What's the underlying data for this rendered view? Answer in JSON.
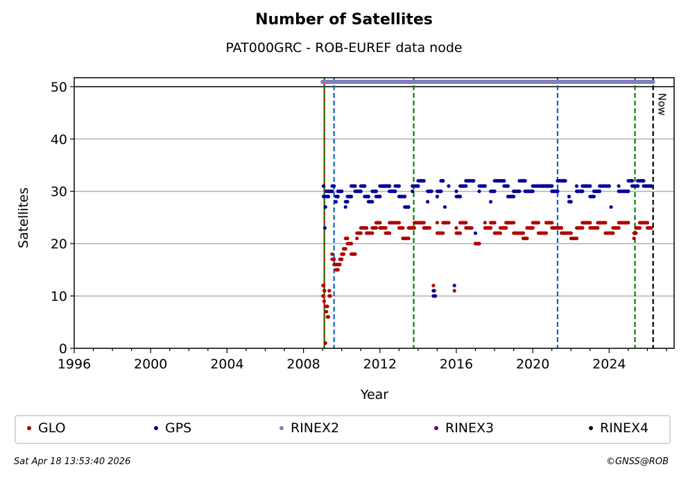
{
  "chart_data": {
    "type": "scatter",
    "title": "Number of Satellites",
    "subtitle": "PAT000GRC - ROB-EUREF data node",
    "xlabel": "Year",
    "ylabel": "Satellites",
    "xlim": [
      1996,
      2027.4
    ],
    "ylim": [
      0,
      51.7
    ],
    "xticks": [
      1996,
      2000,
      2004,
      2008,
      2012,
      2016,
      2020,
      2024
    ],
    "yticks": [
      0,
      10,
      20,
      30,
      40,
      50
    ],
    "grid": "horizontal",
    "legend_placement": "bottom",
    "now_label": "Now",
    "now_year": 2026.3,
    "vlines": [
      {
        "year": 2009.09,
        "color": "#cc0000"
      },
      {
        "year": 2009.09,
        "color": "#008000"
      },
      {
        "year": 2009.6,
        "color": "#1060c0"
      },
      {
        "year": 2013.77,
        "color": "#008000"
      },
      {
        "year": 2021.3,
        "color": "#1060c0"
      },
      {
        "year": 2025.35,
        "color": "#008000"
      }
    ],
    "rinex2_span": {
      "from": 2009.0,
      "to": 2026.3,
      "level": 50.9
    },
    "series": [
      {
        "name": "GLO",
        "color": "#b00000",
        "points": [
          [
            2009.02,
            10
          ],
          [
            2009.05,
            12
          ],
          [
            2009.08,
            9
          ],
          [
            2009.1,
            11
          ],
          [
            2009.15,
            1
          ],
          [
            2009.2,
            7
          ],
          [
            2009.25,
            8
          ],
          [
            2009.3,
            6
          ],
          [
            2009.35,
            11
          ],
          [
            2009.4,
            10
          ],
          [
            2009.5,
            18
          ],
          [
            2009.6,
            17
          ],
          [
            2009.7,
            16
          ],
          [
            2009.8,
            15
          ],
          [
            2009.9,
            16
          ],
          [
            2010.0,
            17
          ],
          [
            2010.1,
            18
          ],
          [
            2010.2,
            19
          ],
          [
            2010.3,
            21
          ],
          [
            2010.5,
            20
          ],
          [
            2010.7,
            18
          ],
          [
            2010.8,
            21
          ],
          [
            2011.0,
            22
          ],
          [
            2011.3,
            23
          ],
          [
            2011.6,
            22
          ],
          [
            2011.8,
            23
          ],
          [
            2012.0,
            24
          ],
          [
            2012.3,
            23
          ],
          [
            2012.5,
            22
          ],
          [
            2013.0,
            24
          ],
          [
            2013.2,
            23
          ],
          [
            2013.5,
            21
          ],
          [
            2013.8,
            23
          ],
          [
            2014.0,
            24
          ],
          [
            2014.3,
            24
          ],
          [
            2014.6,
            23
          ],
          [
            2014.8,
            12
          ],
          [
            2014.85,
            11
          ],
          [
            2015.0,
            24
          ],
          [
            2015.3,
            22
          ],
          [
            2015.6,
            24
          ],
          [
            2015.9,
            11
          ],
          [
            2016.0,
            23
          ],
          [
            2016.2,
            22
          ],
          [
            2016.5,
            24
          ],
          [
            2016.8,
            23
          ],
          [
            2017.0,
            20
          ],
          [
            2017.2,
            20
          ],
          [
            2017.5,
            24
          ],
          [
            2017.8,
            23
          ],
          [
            2018.0,
            24
          ],
          [
            2018.3,
            22
          ],
          [
            2018.6,
            23
          ],
          [
            2019.0,
            24
          ],
          [
            2019.5,
            22
          ],
          [
            2019.7,
            21
          ],
          [
            2020.0,
            23
          ],
          [
            2020.3,
            24
          ],
          [
            2020.7,
            22
          ],
          [
            2021.0,
            24
          ],
          [
            2021.5,
            23
          ],
          [
            2022.0,
            22
          ],
          [
            2022.3,
            21
          ],
          [
            2022.6,
            23
          ],
          [
            2023.0,
            24
          ],
          [
            2023.4,
            23
          ],
          [
            2023.8,
            24
          ],
          [
            2024.2,
            22
          ],
          [
            2024.5,
            23
          ],
          [
            2025.0,
            24
          ],
          [
            2025.3,
            21
          ],
          [
            2025.4,
            22
          ],
          [
            2025.6,
            23
          ],
          [
            2026.0,
            24
          ],
          [
            2026.2,
            23
          ]
        ]
      },
      {
        "name": "GPS",
        "color": "#000099",
        "points": [
          [
            2009.05,
            31
          ],
          [
            2009.1,
            29
          ],
          [
            2009.12,
            23
          ],
          [
            2009.15,
            27
          ],
          [
            2009.2,
            30
          ],
          [
            2009.3,
            29
          ],
          [
            2009.5,
            30
          ],
          [
            2009.6,
            31
          ],
          [
            2009.7,
            28
          ],
          [
            2009.8,
            29
          ],
          [
            2010.0,
            30
          ],
          [
            2010.2,
            27
          ],
          [
            2010.3,
            28
          ],
          [
            2010.5,
            29
          ],
          [
            2010.7,
            31
          ],
          [
            2011.0,
            30
          ],
          [
            2011.2,
            31
          ],
          [
            2011.4,
            29
          ],
          [
            2011.6,
            28
          ],
          [
            2011.8,
            30
          ],
          [
            2012.0,
            29
          ],
          [
            2012.2,
            31
          ],
          [
            2012.5,
            31
          ],
          [
            2012.8,
            30
          ],
          [
            2013.0,
            31
          ],
          [
            2013.3,
            29
          ],
          [
            2013.5,
            27
          ],
          [
            2013.7,
            30
          ],
          [
            2014.0,
            31
          ],
          [
            2014.3,
            32
          ],
          [
            2014.5,
            28
          ],
          [
            2014.7,
            30
          ],
          [
            2014.8,
            11
          ],
          [
            2014.9,
            10
          ],
          [
            2015.0,
            29
          ],
          [
            2015.2,
            30
          ],
          [
            2015.3,
            32
          ],
          [
            2015.4,
            27
          ],
          [
            2015.6,
            31
          ],
          [
            2015.9,
            12
          ],
          [
            2016.0,
            30
          ],
          [
            2016.2,
            29
          ],
          [
            2016.5,
            31
          ],
          [
            2016.9,
            32
          ],
          [
            2017.0,
            22
          ],
          [
            2017.2,
            30
          ],
          [
            2017.5,
            31
          ],
          [
            2017.8,
            28
          ],
          [
            2018.0,
            30
          ],
          [
            2018.5,
            32
          ],
          [
            2018.7,
            31
          ],
          [
            2019.0,
            29
          ],
          [
            2019.3,
            30
          ],
          [
            2019.6,
            32
          ],
          [
            2020.0,
            30
          ],
          [
            2020.5,
            31
          ],
          [
            2021.0,
            31
          ],
          [
            2021.3,
            30
          ],
          [
            2021.7,
            32
          ],
          [
            2021.9,
            29
          ],
          [
            2022.0,
            28
          ],
          [
            2022.3,
            31
          ],
          [
            2022.6,
            30
          ],
          [
            2023.0,
            31
          ],
          [
            2023.2,
            29
          ],
          [
            2023.5,
            30
          ],
          [
            2024.0,
            31
          ],
          [
            2024.1,
            27
          ],
          [
            2024.5,
            31
          ],
          [
            2025.0,
            30
          ],
          [
            2025.2,
            32
          ],
          [
            2025.5,
            31
          ],
          [
            2025.8,
            32
          ],
          [
            2026.2,
            31
          ]
        ]
      }
    ],
    "legend": [
      {
        "label": "GLO",
        "color": "#b00000"
      },
      {
        "label": "GPS",
        "color": "#000099"
      },
      {
        "label": "RINEX2",
        "color": "#8080c0"
      },
      {
        "label": "RINEX3",
        "color": "#700070"
      },
      {
        "label": "RINEX4",
        "color": "#200020"
      }
    ]
  },
  "footer": {
    "timestamp": "Sat Apr 18 13:53:40 2026",
    "copyright": "©GNSS@ROB"
  }
}
